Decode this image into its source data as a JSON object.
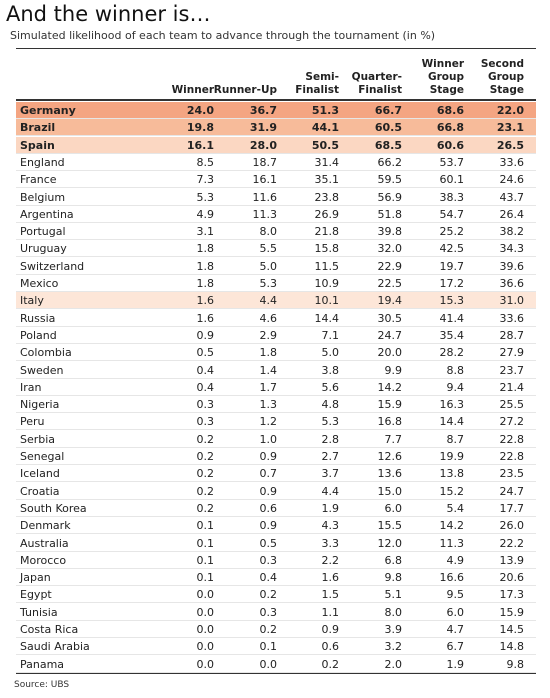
{
  "header": {
    "title": "And the winner is…",
    "subtitle": "Simulated likelihood of each team to advance through the tournament (in %)"
  },
  "table": {
    "columns": [
      [
        "Winner"
      ],
      [
        "Runner-Up"
      ],
      [
        "Semi-",
        "Finalist"
      ],
      [
        "Quarter-",
        "Finalist"
      ],
      [
        "Winner",
        "Group",
        "Stage"
      ],
      [
        "Second",
        "Group",
        "Stage"
      ]
    ],
    "rows": [
      {
        "team": "Germany",
        "values": [
          "24.0",
          "36.7",
          "51.3",
          "66.7",
          "68.6",
          "22.0"
        ],
        "highlight": "#f4a582",
        "bold": true
      },
      {
        "team": "Brazil",
        "values": [
          "19.8",
          "31.9",
          "44.1",
          "60.5",
          "66.8",
          "23.1"
        ],
        "highlight": "#f7bb9a",
        "bold": true
      },
      {
        "team": "Spain",
        "values": [
          "16.1",
          "28.0",
          "50.5",
          "68.5",
          "60.6",
          "26.5"
        ],
        "highlight": "#fbd7c2",
        "bold": true
      },
      {
        "team": "England",
        "values": [
          "8.5",
          "18.7",
          "31.4",
          "66.2",
          "53.7",
          "33.6"
        ]
      },
      {
        "team": "France",
        "values": [
          "7.3",
          "16.1",
          "35.1",
          "59.5",
          "60.1",
          "24.6"
        ]
      },
      {
        "team": "Belgium",
        "values": [
          "5.3",
          "11.6",
          "23.8",
          "56.9",
          "38.3",
          "43.7"
        ]
      },
      {
        "team": "Argentina",
        "values": [
          "4.9",
          "11.3",
          "26.9",
          "51.8",
          "54.7",
          "26.4"
        ]
      },
      {
        "team": "Portugal",
        "values": [
          "3.1",
          "8.0",
          "21.8",
          "39.8",
          "25.2",
          "38.2"
        ]
      },
      {
        "team": "Uruguay",
        "values": [
          "1.8",
          "5.5",
          "15.8",
          "32.0",
          "42.5",
          "34.3"
        ]
      },
      {
        "team": "Switzerland",
        "values": [
          "1.8",
          "5.0",
          "11.5",
          "22.9",
          "19.7",
          "39.6"
        ]
      },
      {
        "team": "Mexico",
        "values": [
          "1.8",
          "5.3",
          "10.9",
          "22.5",
          "17.2",
          "36.6"
        ]
      },
      {
        "team": "Italy",
        "values": [
          "1.6",
          "4.4",
          "10.1",
          "19.4",
          "15.3",
          "31.0"
        ],
        "highlight": "#fde6d8"
      },
      {
        "team": "Russia",
        "values": [
          "1.6",
          "4.6",
          "14.4",
          "30.5",
          "41.4",
          "33.6"
        ]
      },
      {
        "team": "Poland",
        "values": [
          "0.9",
          "2.9",
          "7.1",
          "24.7",
          "35.4",
          "28.7"
        ]
      },
      {
        "team": "Colombia",
        "values": [
          "0.5",
          "1.8",
          "5.0",
          "20.0",
          "28.2",
          "27.9"
        ]
      },
      {
        "team": "Sweden",
        "values": [
          "0.4",
          "1.4",
          "3.8",
          "9.9",
          "8.8",
          "23.7"
        ]
      },
      {
        "team": "Iran",
        "values": [
          "0.4",
          "1.7",
          "5.6",
          "14.2",
          "9.4",
          "21.4"
        ]
      },
      {
        "team": "Nigeria",
        "values": [
          "0.3",
          "1.3",
          "4.8",
          "15.9",
          "16.3",
          "25.5"
        ]
      },
      {
        "team": "Peru",
        "values": [
          "0.3",
          "1.2",
          "5.3",
          "16.8",
          "14.4",
          "27.2"
        ]
      },
      {
        "team": "Serbia",
        "values": [
          "0.2",
          "1.0",
          "2.8",
          "7.7",
          "8.7",
          "22.8"
        ]
      },
      {
        "team": "Senegal",
        "values": [
          "0.2",
          "0.9",
          "2.7",
          "12.6",
          "19.9",
          "22.8"
        ]
      },
      {
        "team": "Iceland",
        "values": [
          "0.2",
          "0.7",
          "3.7",
          "13.6",
          "13.8",
          "23.5"
        ]
      },
      {
        "team": "Croatia",
        "values": [
          "0.2",
          "0.9",
          "4.4",
          "15.0",
          "15.2",
          "24.7"
        ]
      },
      {
        "team": "South Korea",
        "values": [
          "0.2",
          "0.6",
          "1.9",
          "6.0",
          "5.4",
          "17.7"
        ]
      },
      {
        "team": "Denmark",
        "values": [
          "0.1",
          "0.9",
          "4.3",
          "15.5",
          "14.2",
          "26.0"
        ]
      },
      {
        "team": "Australia",
        "values": [
          "0.1",
          "0.5",
          "3.3",
          "12.0",
          "11.3",
          "22.2"
        ]
      },
      {
        "team": "Morocco",
        "values": [
          "0.1",
          "0.3",
          "2.2",
          "6.8",
          "4.9",
          "13.9"
        ]
      },
      {
        "team": "Japan",
        "values": [
          "0.1",
          "0.4",
          "1.6",
          "9.8",
          "16.6",
          "20.6"
        ]
      },
      {
        "team": "Egypt",
        "values": [
          "0.0",
          "0.2",
          "1.5",
          "5.1",
          "9.5",
          "17.3"
        ]
      },
      {
        "team": "Tunisia",
        "values": [
          "0.0",
          "0.3",
          "1.1",
          "8.0",
          "6.0",
          "15.9"
        ]
      },
      {
        "team": "Costa Rica",
        "values": [
          "0.0",
          "0.2",
          "0.9",
          "3.9",
          "4.7",
          "14.5"
        ]
      },
      {
        "team": "Saudi Arabia",
        "values": [
          "0.0",
          "0.1",
          "0.6",
          "3.2",
          "6.7",
          "14.8"
        ]
      },
      {
        "team": "Panama",
        "values": [
          "0.0",
          "0.0",
          "0.2",
          "2.0",
          "1.9",
          "9.8"
        ]
      }
    ]
  },
  "footer": {
    "source": "Source: UBS"
  }
}
